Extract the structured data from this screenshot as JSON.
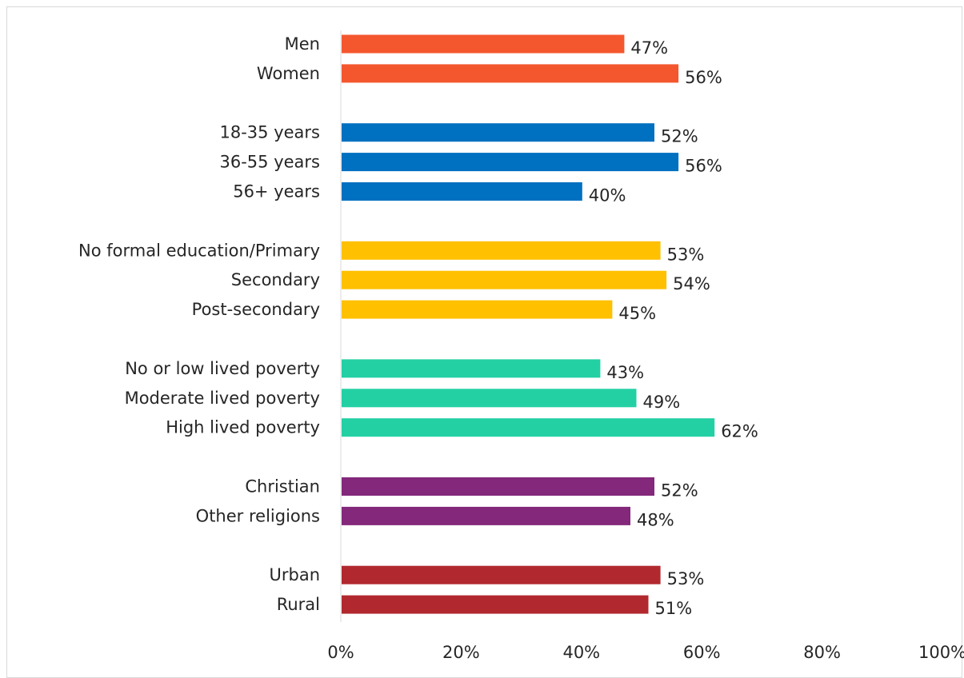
{
  "chart_data": {
    "type": "bar",
    "orientation": "horizontal",
    "categories": [
      "Men",
      "Women",
      "18-35 years",
      "36-55 years",
      "56+ years",
      "No formal education/Primary",
      "Secondary",
      "Post-secondary",
      "No or low lived poverty",
      "Moderate lived poverty",
      "High lived poverty",
      "Christian",
      "Other religions",
      "Urban",
      "Rural"
    ],
    "groups": [
      {
        "categories": [
          "Men",
          "Women"
        ],
        "values": [
          47,
          56
        ],
        "color": "#f4572e"
      },
      {
        "categories": [
          "18-35 years",
          "36-55 years",
          "56+ years"
        ],
        "values": [
          52,
          56,
          40
        ],
        "color": "#0070c0"
      },
      {
        "categories": [
          "No formal education/Primary",
          "Secondary",
          "Post-secondary"
        ],
        "values": [
          53,
          54,
          45
        ],
        "color": "#ffc000"
      },
      {
        "categories": [
          "No or low lived poverty",
          "Moderate lived poverty",
          "High lived poverty"
        ],
        "values": [
          43,
          49,
          62
        ],
        "color": "#23d0a4"
      },
      {
        "categories": [
          "Christian",
          "Other religions"
        ],
        "values": [
          52,
          48
        ],
        "color": "#83287b"
      },
      {
        "categories": [
          "Urban",
          "Rural"
        ],
        "values": [
          53,
          51
        ],
        "color": "#b1292f"
      }
    ],
    "value_labels": {
      "Men": "47%",
      "Women": "56%",
      "18-35 years": "52%",
      "36-55 years": "56%",
      "56+ years": "40%",
      "No formal education/Primary": "53%",
      "Secondary": "54%",
      "Post-secondary": "45%",
      "No or low lived poverty": "43%",
      "Moderate lived poverty": "49%",
      "High lived poverty": "62%",
      "Christian": "52%",
      "Other religions": "48%",
      "Urban": "53%",
      "Rural": "51%"
    },
    "xlim": [
      0,
      100
    ],
    "x_ticks": [
      "0%",
      "20%",
      "40%",
      "60%",
      "80%",
      "100%"
    ],
    "x_tick_values": [
      0,
      20,
      40,
      60,
      80,
      100
    ],
    "grid": false,
    "legend": "none",
    "title": "",
    "xlabel": "",
    "ylabel": ""
  }
}
